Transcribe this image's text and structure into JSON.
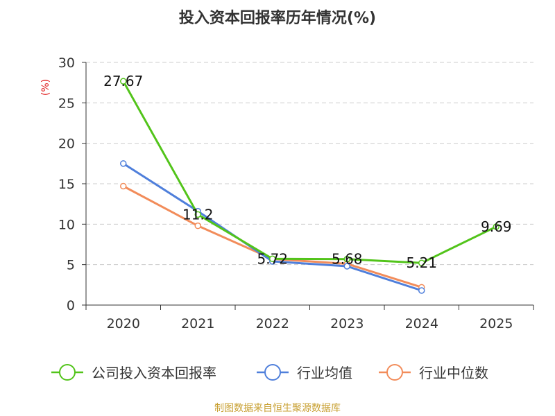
{
  "chart_data": {
    "type": "line",
    "title": "投入资本回报率历年情况(%)",
    "ylabel": "(%)",
    "xlabel": "",
    "categories": [
      "2020",
      "2021",
      "2022",
      "2023",
      "2024",
      "2025"
    ],
    "ylim": [
      0,
      30
    ],
    "yticks": [
      0,
      5,
      10,
      15,
      20,
      25,
      30
    ],
    "grid": true,
    "legend_position": "bottom",
    "series": [
      {
        "name": "公司投入资本回报率",
        "color": "#52c41a",
        "values": [
          27.67,
          11.2,
          5.72,
          5.68,
          5.21,
          9.69
        ],
        "labels": [
          "27.67",
          "11.2",
          "5.72",
          "5.68",
          "5.21",
          "9.69"
        ]
      },
      {
        "name": "行业均值",
        "color": "#4f7fdb",
        "values": [
          17.5,
          11.6,
          5.4,
          4.8,
          1.8,
          null
        ]
      },
      {
        "name": "行业中位数",
        "color": "#f28c5a",
        "values": [
          14.7,
          9.8,
          5.7,
          5.1,
          2.2,
          null
        ]
      }
    ]
  },
  "source": "制图数据来自恒生聚源数据库"
}
